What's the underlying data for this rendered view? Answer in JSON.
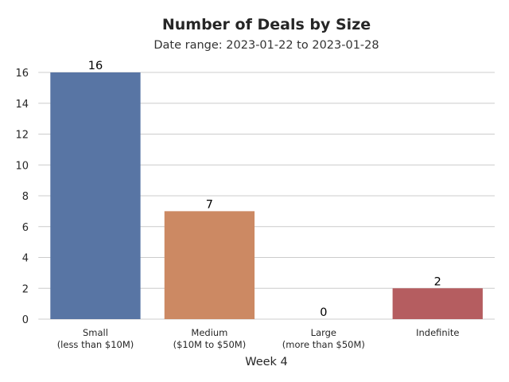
{
  "chart_data": {
    "type": "bar",
    "title": "Number of Deals by Size",
    "subtitle": "Date range: 2023-01-22 to 2023-01-28",
    "categories": [
      [
        "Small",
        "(less than $10M)"
      ],
      [
        "Medium",
        "($10M to $50M)"
      ],
      [
        "Large",
        "(more than $50M)"
      ],
      [
        "Indefinite"
      ]
    ],
    "values": [
      16,
      7,
      0,
      2
    ],
    "data_labels": [
      "16",
      "7",
      "0",
      "2"
    ],
    "colors": [
      "#5875a4",
      "#cc8963",
      "#5f9e6e",
      "#b55d60"
    ],
    "xlabel": "Week 4",
    "ylabel": "",
    "ylim": [
      0,
      16.8
    ],
    "yticks": [
      0,
      2,
      4,
      6,
      8,
      10,
      12,
      14,
      16
    ],
    "grid": "y",
    "grid_color": "#cccccc"
  }
}
